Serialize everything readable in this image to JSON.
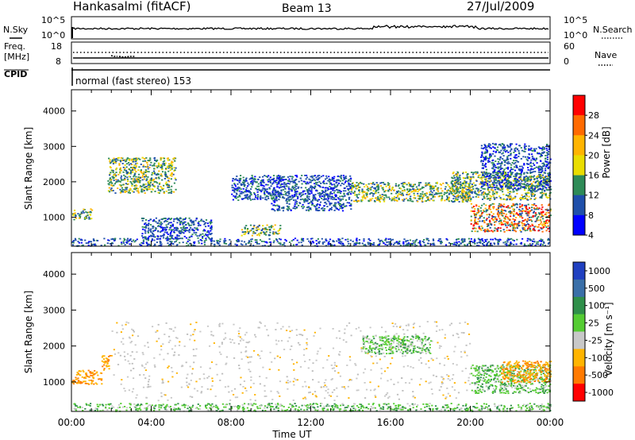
{
  "header": {
    "station": "Hankasalmi (fitACF)",
    "beam": "Beam 13",
    "date": "27/Jul/2009"
  },
  "top_panels": {
    "nsky_label": "N.Sky",
    "nsearch_label": "N.Search",
    "noise_ticks": [
      "10^5",
      "10^0"
    ],
    "freq_label_1": "Freq.",
    "freq_label_2": "[MHz]",
    "freq_ticks_left": [
      "18",
      "8"
    ],
    "nave_ticks_right": [
      "60",
      "0"
    ],
    "nave_label": "Nave",
    "cpid_label": "CPID",
    "cpid_text": "normal (fast stereo) 153"
  },
  "chart_data": [
    {
      "type": "heatmap",
      "title": "",
      "xlabel": "Time UT",
      "ylabel": "Slant Range [km]",
      "x_ticks": [
        "00:00",
        "04:00",
        "08:00",
        "12:00",
        "16:00",
        "20:00",
        "00:00"
      ],
      "y_ticks": [
        "1000",
        "2000",
        "3000",
        "4000"
      ],
      "xlim": [
        0,
        24
      ],
      "ylim": [
        180,
        4600
      ],
      "colorbar": {
        "label": "Power [dB]",
        "ticks": [
          "28",
          "24",
          "20",
          "16",
          "12",
          "8",
          "4"
        ],
        "colors": [
          "#ff0000",
          "#ff6a00",
          "#ffb400",
          "#eadd00",
          "#2e8b57",
          "#1f4faa",
          "#0000ff"
        ]
      },
      "regions": [
        {
          "t0": 0.0,
          "t1": 24.0,
          "r0": 200,
          "r1": 420,
          "level": "low"
        },
        {
          "t0": 0.0,
          "t1": 1.0,
          "r0": 950,
          "r1": 1250,
          "level": "mid"
        },
        {
          "t0": 1.8,
          "t1": 5.2,
          "r0": 1700,
          "r1": 2700,
          "level": "mid"
        },
        {
          "t0": 3.5,
          "t1": 7.0,
          "r0": 400,
          "r1": 1000,
          "level": "low"
        },
        {
          "t0": 8.0,
          "t1": 10.5,
          "r0": 1500,
          "r1": 2200,
          "level": "low"
        },
        {
          "t0": 8.5,
          "t1": 10.5,
          "r0": 500,
          "r1": 800,
          "level": "mid"
        },
        {
          "t0": 10.0,
          "t1": 14.0,
          "r0": 1200,
          "r1": 2200,
          "level": "low"
        },
        {
          "t0": 14.0,
          "t1": 20.0,
          "r0": 1450,
          "r1": 2000,
          "level": "mid"
        },
        {
          "t0": 19.0,
          "t1": 24.0,
          "r0": 1500,
          "r1": 2300,
          "level": "mid"
        },
        {
          "t0": 20.0,
          "t1": 24.0,
          "r0": 600,
          "r1": 1400,
          "level": "high"
        },
        {
          "t0": 20.5,
          "t1": 24.0,
          "r0": 1800,
          "r1": 3100,
          "level": "low"
        }
      ]
    },
    {
      "type": "heatmap",
      "title": "",
      "xlabel": "Time UT",
      "ylabel": "Slant Range [km]",
      "x_ticks": [
        "00:00",
        "04:00",
        "08:00",
        "12:00",
        "16:00",
        "20:00",
        "00:00"
      ],
      "y_ticks": [
        "1000",
        "2000",
        "3000",
        "4000"
      ],
      "xlim": [
        0,
        24
      ],
      "ylim": [
        180,
        4600
      ],
      "colorbar": {
        "label": "Velocity [m s⁻¹]",
        "ticks": [
          "1000",
          "500",
          "100",
          "25",
          "-25",
          "-100",
          "-500",
          "-1000"
        ],
        "colors": [
          "#2040c0",
          "#3a6fa8",
          "#2f8f4a",
          "#55cc33",
          "#c8c8c8",
          "#ffb400",
          "#ff7a00",
          "#ff0000"
        ]
      },
      "regions": [
        {
          "t0": 0.0,
          "t1": 24.0,
          "r0": 200,
          "r1": 420,
          "level": "green"
        },
        {
          "t0": 0.0,
          "t1": 1.5,
          "r0": 950,
          "r1": 1350,
          "level": "orange"
        },
        {
          "t0": 1.5,
          "t1": 2.0,
          "r0": 1350,
          "r1": 1750,
          "level": "orange"
        },
        {
          "t0": 2.0,
          "t1": 20.0,
          "r0": 500,
          "r1": 2700,
          "level": "grey"
        },
        {
          "t0": 14.5,
          "t1": 18.0,
          "r0": 1800,
          "r1": 2300,
          "level": "green"
        },
        {
          "t0": 20.0,
          "t1": 24.0,
          "r0": 700,
          "r1": 1500,
          "level": "green"
        },
        {
          "t0": 21.5,
          "t1": 24.0,
          "r0": 1000,
          "r1": 1600,
          "level": "orange"
        }
      ]
    }
  ]
}
